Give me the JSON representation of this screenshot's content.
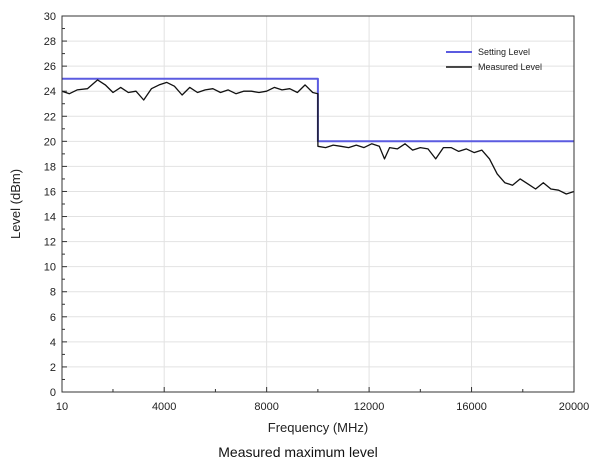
{
  "chart_data": {
    "type": "line",
    "xlabel": "Frequency (MHz)",
    "ylabel": "Level (dBm)",
    "xlim": [
      10,
      20000
    ],
    "ylim": [
      0,
      30
    ],
    "x_ticks": [
      10,
      4000,
      8000,
      12000,
      16000,
      20000
    ],
    "x_tick_labels": [
      "10",
      "4000",
      "8000",
      "12000",
      "16000",
      "20000"
    ],
    "y_ticks": [
      0,
      2,
      4,
      6,
      8,
      10,
      12,
      14,
      16,
      18,
      20,
      22,
      24,
      26,
      28,
      30
    ],
    "grid": true,
    "legend_position": "top-right",
    "series": [
      {
        "name": "Setting Level",
        "color": "#5b5be0",
        "x": [
          10,
          10000,
          10000,
          20000
        ],
        "y": [
          25,
          25,
          20,
          20
        ]
      },
      {
        "name": "Measured Level",
        "color": "#111111",
        "x": [
          10,
          300,
          600,
          1000,
          1400,
          1700,
          2000,
          2300,
          2600,
          2900,
          3200,
          3500,
          3800,
          4100,
          4400,
          4700,
          5000,
          5300,
          5600,
          5900,
          6200,
          6500,
          6800,
          7100,
          7400,
          7700,
          8000,
          8300,
          8600,
          8900,
          9200,
          9500,
          9800,
          10000,
          10001,
          10300,
          10600,
          10900,
          11200,
          11500,
          11800,
          12100,
          12400,
          12600,
          12800,
          13100,
          13400,
          13700,
          14000,
          14300,
          14600,
          14900,
          15200,
          15500,
          15800,
          16100,
          16400,
          16700,
          17000,
          17300,
          17600,
          17900,
          18200,
          18500,
          18800,
          19100,
          19400,
          19700,
          20000
        ],
        "y": [
          24.0,
          23.8,
          24.1,
          24.2,
          24.9,
          24.5,
          23.9,
          24.3,
          23.9,
          24.0,
          23.3,
          24.2,
          24.5,
          24.7,
          24.4,
          23.7,
          24.3,
          23.9,
          24.1,
          24.2,
          23.9,
          24.1,
          23.8,
          24.0,
          24.0,
          23.9,
          24.0,
          24.3,
          24.1,
          24.2,
          23.9,
          24.5,
          23.9,
          23.8,
          19.6,
          19.5,
          19.7,
          19.6,
          19.5,
          19.7,
          19.5,
          19.8,
          19.6,
          18.6,
          19.5,
          19.4,
          19.8,
          19.3,
          19.5,
          19.4,
          18.6,
          19.5,
          19.5,
          19.2,
          19.4,
          19.1,
          19.3,
          18.6,
          17.4,
          16.7,
          16.5,
          17.0,
          16.6,
          16.2,
          16.7,
          16.2,
          16.1,
          15.8,
          16.0
        ]
      }
    ]
  },
  "caption": "Measured maximum level"
}
